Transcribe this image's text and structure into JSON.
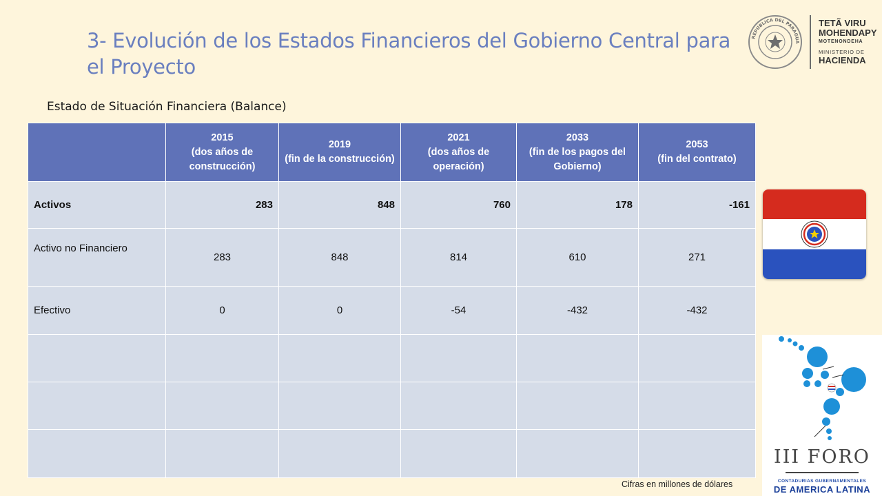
{
  "header": {
    "title": "3- Evolución de los Estados Financieros del Gobierno Central para el Proyecto",
    "subtitle": "Estado de Situación Financiera (Balance)"
  },
  "logo": {
    "seal_text": "REPUBLICA DEL PARAGUAY",
    "line1": "TETÃ VIRU",
    "line2": "MOHENDAPY",
    "line3": "MOTENONDEHA",
    "line4": "MINISTERIO DE",
    "line5": "HACIENDA"
  },
  "table": {
    "headers": [
      {
        "year": "2015",
        "note": "(dos años de construcción)"
      },
      {
        "year": "2019",
        "note": "(fin de la construcción)"
      },
      {
        "year": "2021",
        "note": "(dos años de operación)"
      },
      {
        "year": "2033",
        "note": "(fin de los pagos del Gobierno)"
      },
      {
        "year": "2053",
        "note": "(fin del contrato)"
      }
    ],
    "rows": [
      {
        "label": "Activos",
        "values": [
          "283",
          "848",
          "760",
          "178",
          "-161"
        ]
      },
      {
        "label": "Activo no Financiero",
        "values": [
          "283",
          "848",
          "814",
          "610",
          "271"
        ]
      },
      {
        "label": "Efectivo",
        "values": [
          "0",
          "0",
          "-54",
          "-432",
          "-432"
        ]
      }
    ]
  },
  "footnote": "Cifras en millones de dólares",
  "foro": {
    "title": "III FORO",
    "line1": "CONTADURIAS GUBERNAMENTALES",
    "line2": "DE AMERICA LATINA"
  },
  "colors": {
    "background": "#fef5dc",
    "title": "#6a7fbf",
    "table_header": "#5f72b8",
    "table_body": "#d5dce8",
    "flag_red": "#d52b1e",
    "flag_blue": "#2a52be",
    "foro_dots": "#1e90d8"
  }
}
